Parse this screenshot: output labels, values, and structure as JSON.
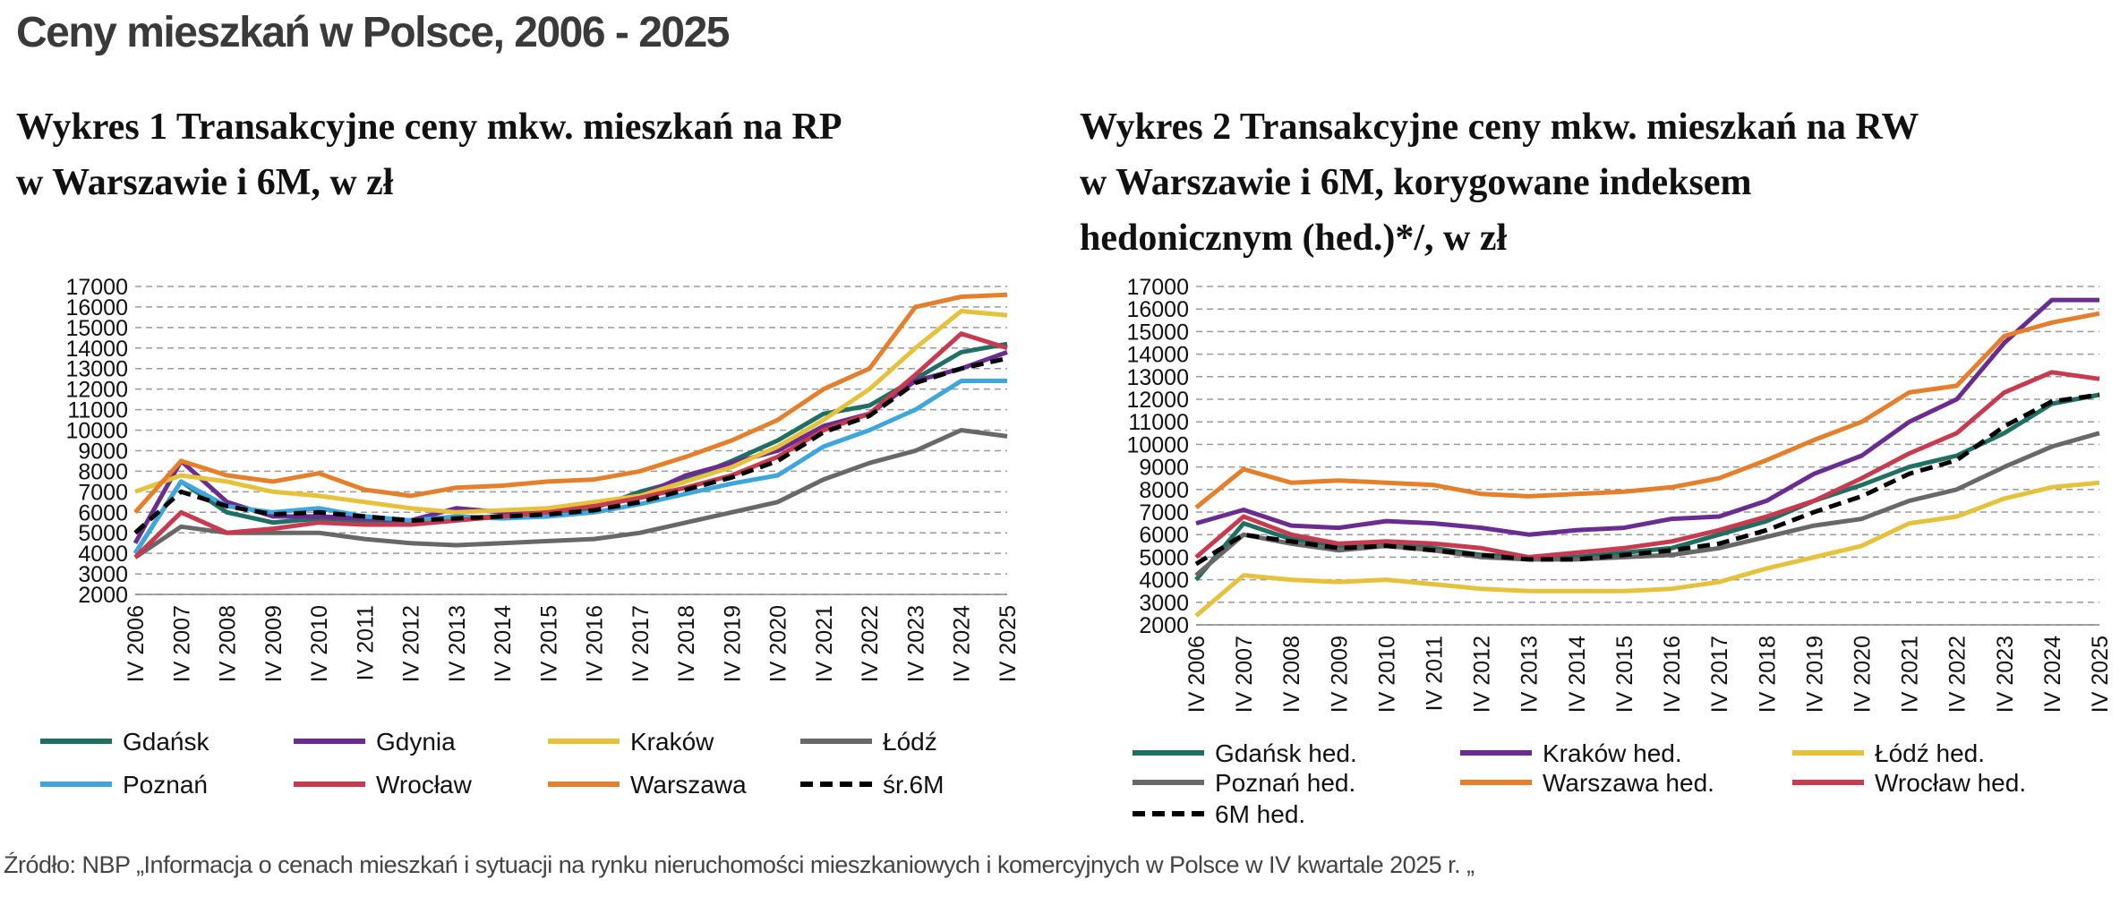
{
  "title": "Ceny mieszkań w Polsce, 2006 - 2025",
  "source": "Źródło: NBP „Informacja o cenach mieszkań  i sytuacji na rynku nieruchomości mieszkaniowych i komercyjnych w Polsce w IV kwartale 2025 r. „",
  "chart_data": [
    {
      "type": "line",
      "title": [
        "Wykres 1 Transakcyjne ceny mkw. mieszkań na RP",
        "w Warszawie i 6M, w zł"
      ],
      "categories": [
        "IV 2006",
        "IV 2007",
        "IV 2008",
        "IV 2009",
        "IV 2010",
        "IV 2011",
        "IV 2012",
        "IV 2013",
        "IV 2014",
        "IV 2015",
        "IV 2016",
        "IV 2017",
        "IV 2018",
        "IV 2019",
        "IV 2020",
        "IV 2021",
        "IV 2022",
        "IV 2023",
        "IV 2024",
        "IV 2025"
      ],
      "ylim": [
        2000,
        17000
      ],
      "yticks": [
        2000,
        3000,
        4000,
        5000,
        6000,
        7000,
        8000,
        9000,
        10000,
        11000,
        12000,
        13000,
        14000,
        15000,
        16000,
        17000
      ],
      "grid": true,
      "series": [
        {
          "name": "Gdańsk",
          "color": "#1f6f63",
          "values": [
            4000,
            7500,
            6000,
            5500,
            5700,
            5600,
            5600,
            5700,
            5800,
            6000,
            6200,
            7000,
            7600,
            8500,
            9500,
            10800,
            11200,
            12500,
            13800,
            14200
          ]
        },
        {
          "name": "Gdynia",
          "color": "#6b2c91",
          "values": [
            4500,
            8500,
            6500,
            5800,
            5800,
            5700,
            5600,
            6200,
            6000,
            6100,
            6300,
            6800,
            7800,
            8400,
            9000,
            10200,
            10800,
            12400,
            13000,
            13800
          ]
        },
        {
          "name": "Kraków",
          "color": "#e6c13c",
          "values": [
            7000,
            7800,
            7500,
            7000,
            6800,
            6500,
            6200,
            6000,
            6100,
            6200,
            6500,
            6800,
            7500,
            8200,
            9200,
            10500,
            12000,
            14000,
            15800,
            15600
          ]
        },
        {
          "name": "Łódź",
          "color": "#686868",
          "values": [
            3800,
            5300,
            5000,
            5000,
            5000,
            4700,
            4500,
            4400,
            4500,
            4600,
            4700,
            5000,
            5500,
            6000,
            6500,
            7600,
            8400,
            9000,
            10000,
            9700
          ]
        },
        {
          "name": "Poznań",
          "color": "#3ea6dc",
          "values": [
            4000,
            7500,
            6300,
            6000,
            6200,
            5800,
            5600,
            5800,
            5700,
            5800,
            6000,
            6400,
            6900,
            7400,
            7800,
            9200,
            10000,
            11000,
            12400,
            12400
          ]
        },
        {
          "name": "Wrocław",
          "color": "#c73a4f",
          "values": [
            3800,
            6000,
            5000,
            5200,
            5500,
            5400,
            5400,
            5600,
            5800,
            6000,
            6300,
            6700,
            7200,
            7800,
            8700,
            10000,
            10800,
            12700,
            14700,
            14000
          ]
        },
        {
          "name": "Warszawa",
          "color": "#e57f2b",
          "values": [
            6000,
            8500,
            7800,
            7500,
            7900,
            7100,
            6800,
            7200,
            7300,
            7500,
            7600,
            8000,
            8700,
            9500,
            10500,
            12000,
            13000,
            16000,
            16500,
            16600
          ]
        },
        {
          "name": "śr.6M",
          "color": "#000000",
          "dashed": true,
          "values": [
            5000,
            7000,
            6300,
            5900,
            6000,
            5800,
            5600,
            5700,
            5800,
            5900,
            6100,
            6500,
            7100,
            7700,
            8500,
            9900,
            10700,
            12300,
            13000,
            13500
          ]
        }
      ]
    },
    {
      "type": "line",
      "title": [
        "Wykres 2 Transakcyjne ceny mkw. mieszkań na RW",
        "w Warszawie i 6M, korygowane indeksem",
        "hedonicznym (hed.)*/, w zł"
      ],
      "categories": [
        "IV 2006",
        "IV 2007",
        "IV 2008",
        "IV 2009",
        "IV 2010",
        "IV 2011",
        "IV 2012",
        "IV 2013",
        "IV 2014",
        "IV 2015",
        "IV 2016",
        "IV 2017",
        "IV 2018",
        "IV 2019",
        "IV 2020",
        "IV 2021",
        "IV 2022",
        "IV 2023",
        "IV 2024",
        "IV 2025"
      ],
      "ylim": [
        2000,
        17000
      ],
      "yticks": [
        2000,
        3000,
        4000,
        5000,
        6000,
        7000,
        8000,
        9000,
        10000,
        11000,
        12000,
        13000,
        14000,
        15000,
        16000,
        17000
      ],
      "grid": true,
      "series": [
        {
          "name": "Gdańsk hed.",
          "color": "#1f6f63",
          "values": [
            4000,
            6500,
            5800,
            5500,
            5600,
            5400,
            5100,
            5000,
            5000,
            5200,
            5400,
            6000,
            6600,
            7500,
            8200,
            9000,
            9500,
            10500,
            11800,
            12200
          ]
        },
        {
          "name": "Kraków hed.",
          "color": "#6b2c91",
          "values": [
            6500,
            7100,
            6400,
            6300,
            6600,
            6500,
            6300,
            6000,
            6200,
            6300,
            6700,
            6800,
            7500,
            8700,
            9500,
            11000,
            12000,
            14500,
            16400,
            16400
          ]
        },
        {
          "name": "Łódź hed.",
          "color": "#e6c13c",
          "values": [
            2400,
            4200,
            4000,
            3900,
            4000,
            3800,
            3600,
            3500,
            3500,
            3500,
            3600,
            3900,
            4500,
            5000,
            5500,
            6500,
            6800,
            7600,
            8100,
            8300
          ]
        },
        {
          "name": "Poznań hed.",
          "color": "#686868",
          "values": [
            4200,
            6000,
            5600,
            5300,
            5500,
            5300,
            5000,
            4900,
            4900,
            5000,
            5100,
            5400,
            5900,
            6400,
            6700,
            7500,
            8000,
            9000,
            9900,
            10500
          ]
        },
        {
          "name": "Warszawa hed.",
          "color": "#e57f2b",
          "values": [
            7200,
            8900,
            8300,
            8400,
            8300,
            8200,
            7800,
            7700,
            7800,
            7900,
            8100,
            8500,
            9300,
            10200,
            11000,
            12300,
            12600,
            14800,
            15400,
            15800
          ]
        },
        {
          "name": "Wrocław hed.",
          "color": "#c73a4f",
          "values": [
            5000,
            6800,
            6000,
            5600,
            5700,
            5600,
            5400,
            5000,
            5200,
            5400,
            5700,
            6200,
            6800,
            7500,
            8500,
            9600,
            10500,
            12300,
            13200,
            12900
          ]
        },
        {
          "name": "6M hed.",
          "color": "#000000",
          "dashed": true,
          "values": [
            4700,
            6000,
            5700,
            5400,
            5500,
            5300,
            5100,
            4900,
            4900,
            5100,
            5300,
            5600,
            6200,
            7000,
            7700,
            8700,
            9300,
            10800,
            11900,
            12200
          ]
        }
      ]
    }
  ]
}
